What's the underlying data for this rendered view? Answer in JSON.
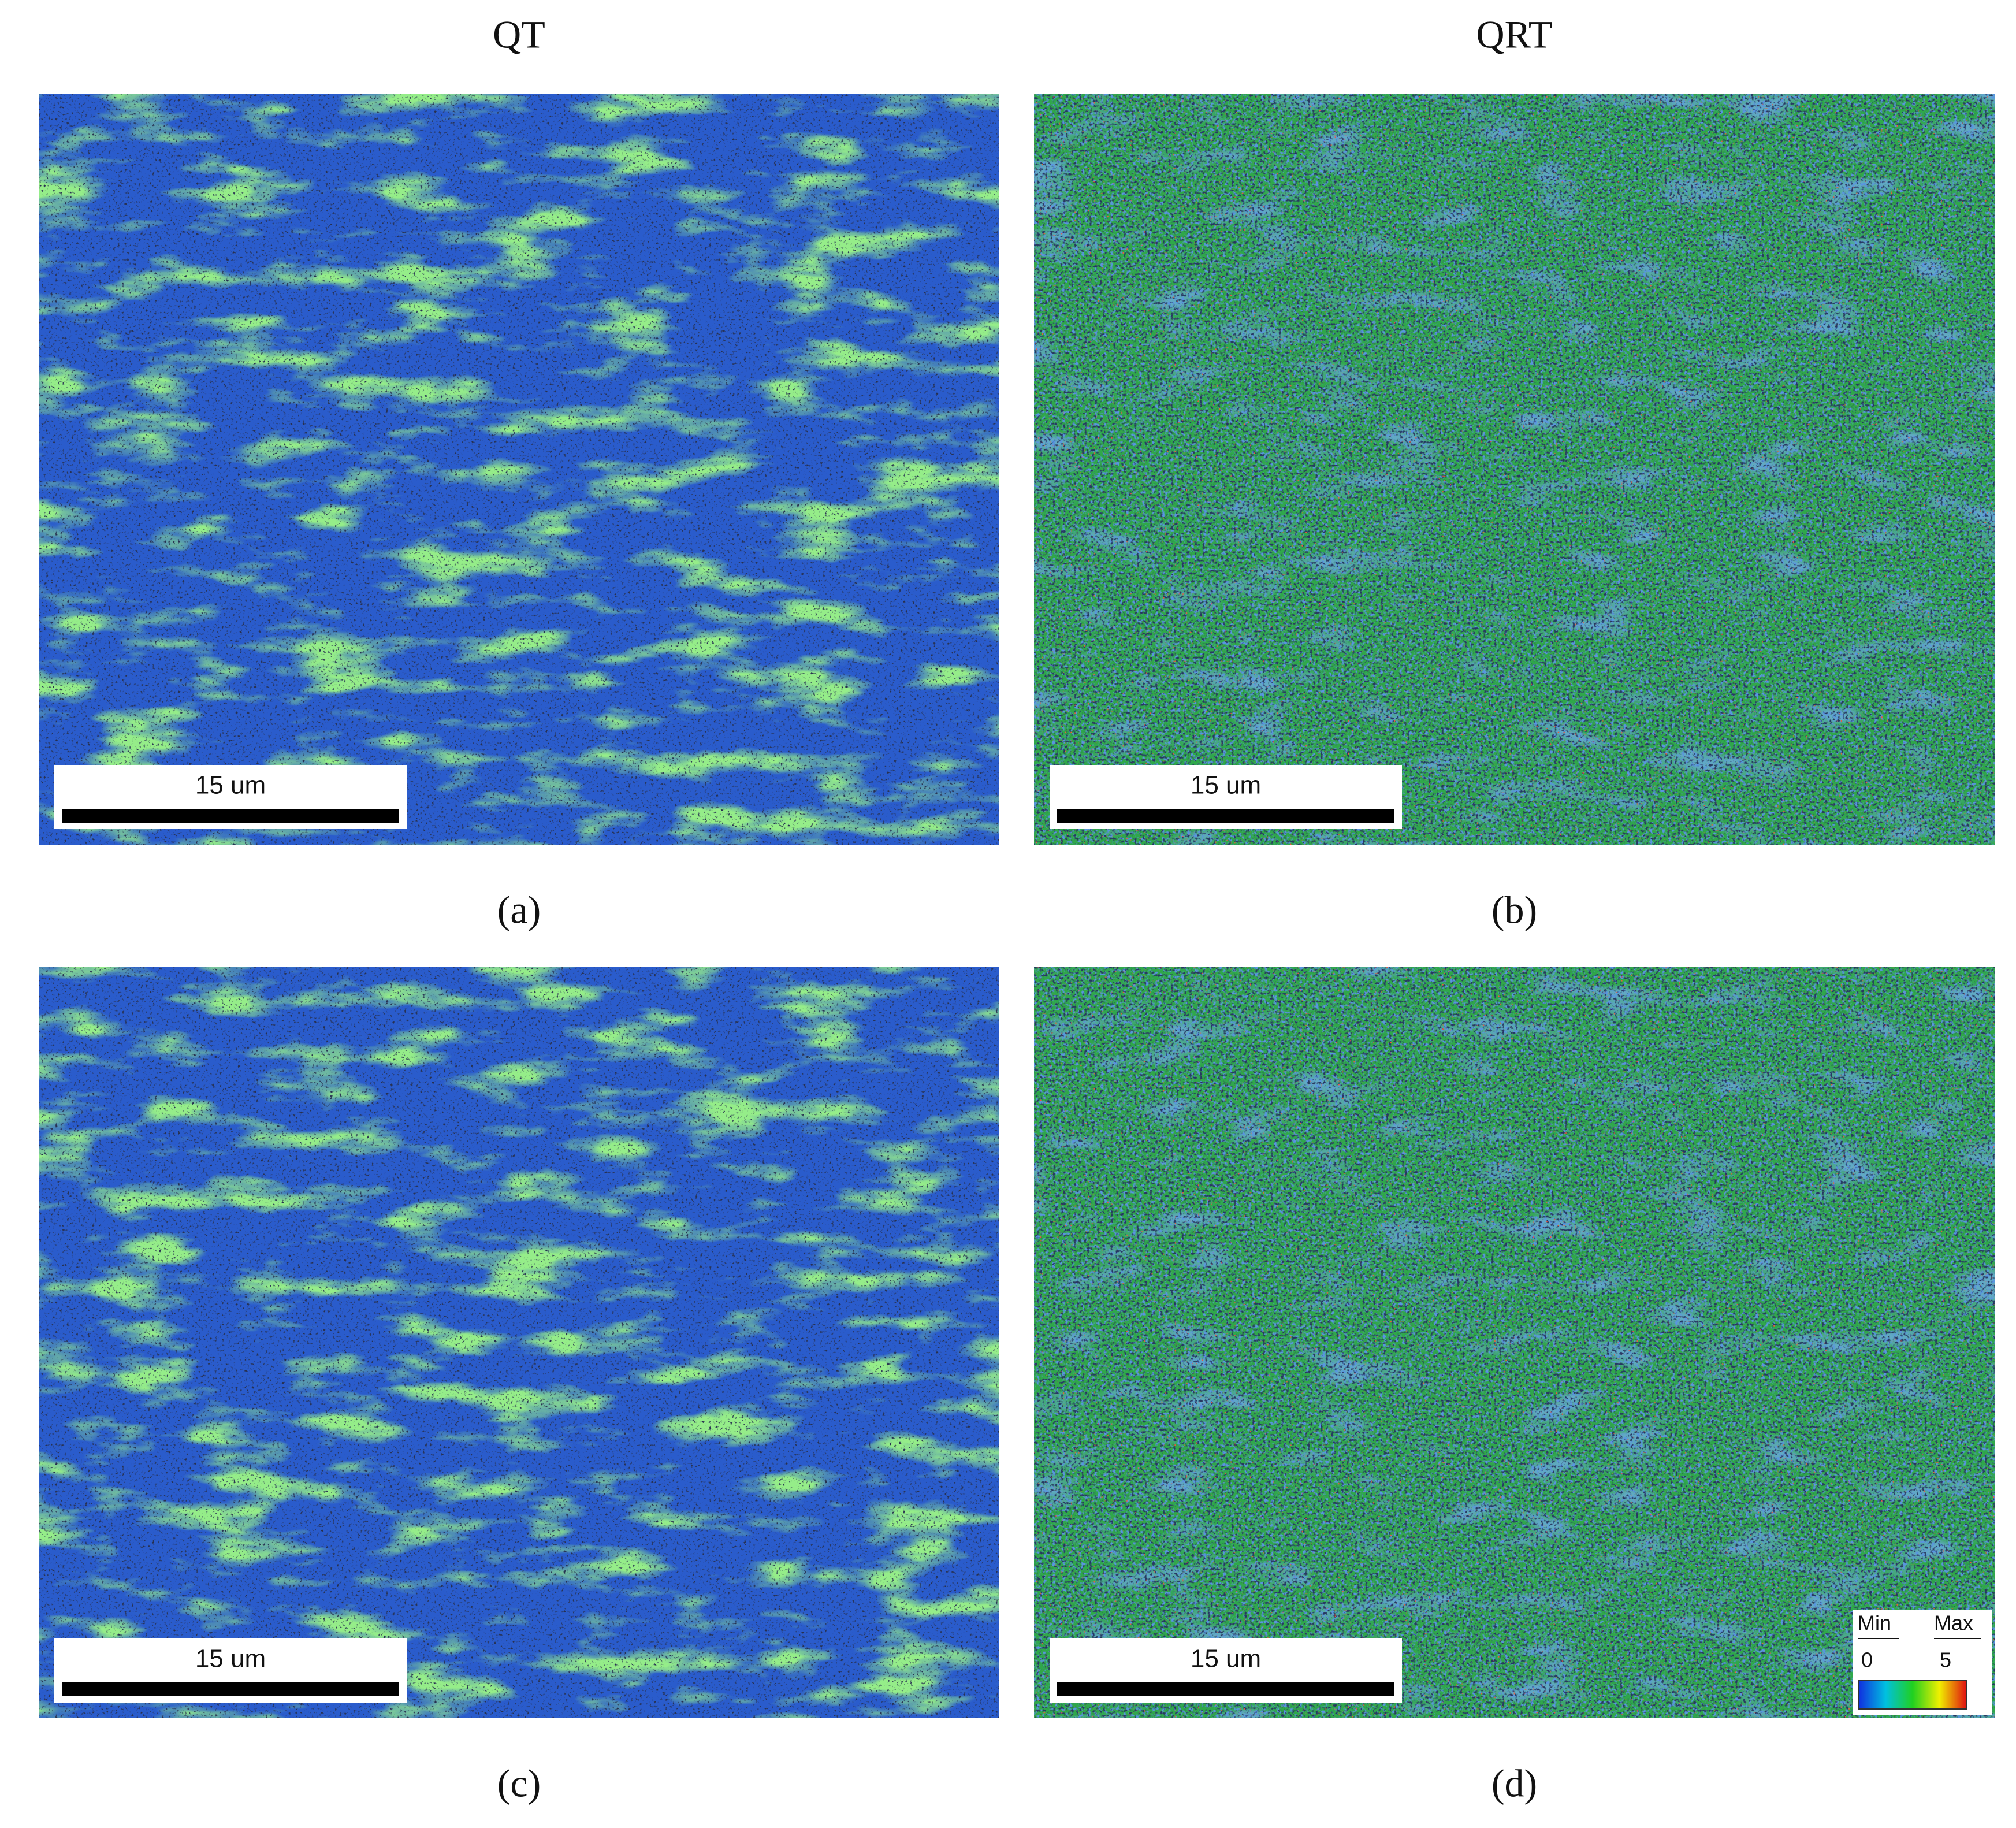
{
  "columns": [
    "QT",
    "QRT"
  ],
  "panels": [
    {
      "label": "(a)",
      "scale_bar": "15 um"
    },
    {
      "label": "(b)",
      "scale_bar": "15 um"
    },
    {
      "label": "(c)",
      "scale_bar": "15 um"
    },
    {
      "label": "(d)",
      "scale_bar": "15 um"
    }
  ],
  "legend": {
    "min_label": "Min",
    "max_label": "Max",
    "min": 0,
    "max": 5
  }
}
